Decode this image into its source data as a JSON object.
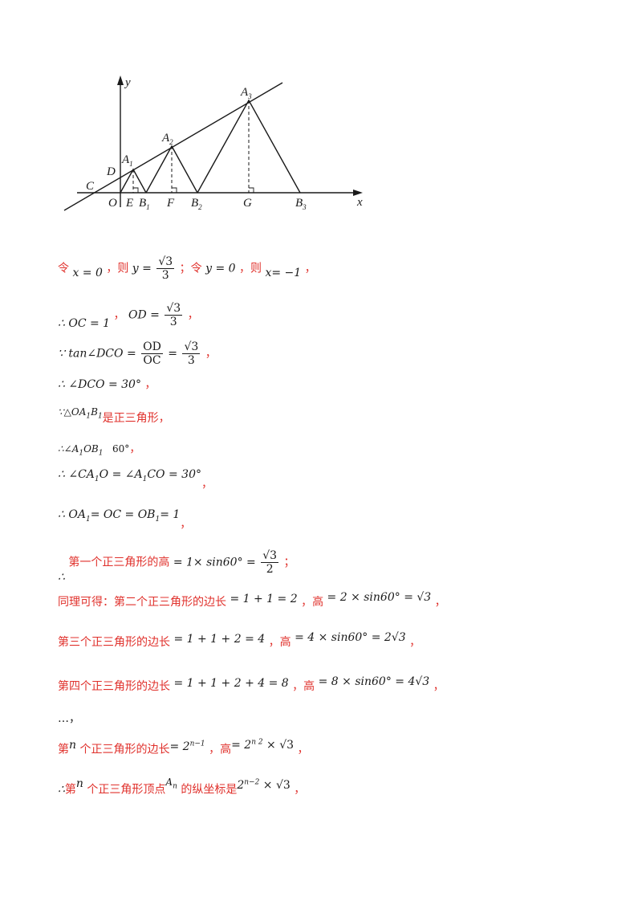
{
  "figure": {
    "labels": {
      "y": "y",
      "x": "x",
      "C": "C",
      "D": "D",
      "O": "O",
      "A1": "A",
      "A1_sub": "1",
      "A2": "A",
      "A2_sub": "2",
      "A3": "A",
      "A3_sub": "3",
      "E": "E",
      "B1": "B",
      "B1_sub": "1",
      "F": "F",
      "B2": "B",
      "B2_sub": "2",
      "G": "G",
      "B3": "B",
      "B3_sub": "3"
    }
  },
  "lines": {
    "l1": {
      "t1": "令",
      "t2": "，则",
      "t3": "；令",
      "t4": "，则",
      "t5": "，",
      "m1": "x = 0",
      "m2": "y =",
      "m3": "√3",
      "m4": "3",
      "m5": "y = 0",
      "m6": "x= −1"
    },
    "l2": {
      "m1": "∴ OC = 1",
      "t1": "，",
      "m2": "OD =",
      "m3": "√3",
      "m4": "3",
      "t2": "，"
    },
    "l3": {
      "m1": "∵ tan∠DCO =",
      "m2": "OD",
      "m3": "OC",
      "m4": "=",
      "m5": "√3",
      "m6": "3",
      "t1": "，"
    },
    "l4": {
      "m1": "∴ ∠DCO = 30°",
      "t1": "，"
    },
    "l5": {
      "m1": "∵△OA",
      "m1s": "1",
      "m2": "B",
      "m2s": "1",
      "t1": "是正三角形，"
    },
    "l6": {
      "m1": "∴∠A",
      "m1s": "1",
      "m2": "OB",
      "m2s": "1",
      "m3": "60°",
      "t1": "，"
    },
    "l7": {
      "m1": "∴ ∠CA",
      "m1s": "1",
      "m2": "O = ∠A",
      "m2s": "1",
      "m3": "CO = 30°",
      "t1": "，"
    },
    "l8": {
      "m1": "∴ OA",
      "m1s": "1",
      "m2": "= OC = OB",
      "m2s": "1",
      "m3": "= 1",
      "t1": "，"
    },
    "l9": {
      "m0": "∴",
      "t1": "第一个正三角形的高",
      "m1": "= 1× sin60° =",
      "m2": "√3",
      "m3": "2",
      "t2": "；"
    },
    "l10": {
      "t1": "同理可得：第二个正三角形的边长",
      "m1": "= 1 + 1 = 2",
      "t2": "，高",
      "m2": "= 2 × sin60° = √3",
      "t3": "，"
    },
    "l11": {
      "t1": "第三个正三角形的边长",
      "m1": "= 1 + 1 + 2 = 4",
      "t2": "，高",
      "m2": "= 4 × sin60° = 2√3",
      "t3": "，"
    },
    "l12": {
      "t1": "第四个正三角形的边长",
      "m1": "= 1 + 1 + 2 + 4 = 8",
      "t2": "，高",
      "m2": "= 8 × sin60° = 4√3",
      "t3": "，"
    },
    "l13": {
      "t1": "…，"
    },
    "l14": {
      "t1": "第",
      "m1": "n",
      "t2": "个正三角形的边长",
      "m2": "= 2",
      "m2s": "n−1",
      "t3": "，高",
      "m3": "= 2",
      "m3s": "n  2",
      "m4": "× √3",
      "t4": "，"
    },
    "l15": {
      "m0": "∴",
      "t1": "第",
      "m1": "n",
      "t2": "个正三角形顶点",
      "m2": "A",
      "m2s": "n",
      "t3": "的纵坐标是",
      "m3": "2",
      "m3s": "n−2",
      "m4": "× √3",
      "t4": "，"
    }
  }
}
